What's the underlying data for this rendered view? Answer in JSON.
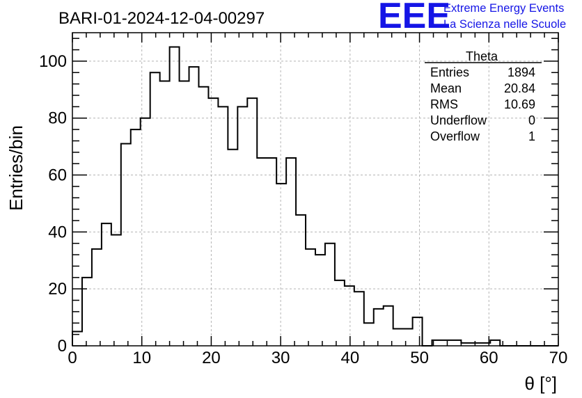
{
  "chart_data": {
    "type": "bar",
    "title": "BARI-01-2024-12-04-00297",
    "xlabel": "θ [°]",
    "ylabel": "Entries/bin",
    "xlim": [
      0,
      70
    ],
    "ylim": [
      0,
      110
    ],
    "bin_width": 1.4,
    "grid": true,
    "x_ticks": [
      0,
      10,
      20,
      30,
      40,
      50,
      60,
      70
    ],
    "y_ticks": [
      0,
      20,
      40,
      60,
      80,
      100
    ],
    "values": [
      5,
      24,
      34,
      43,
      39,
      71,
      76,
      80,
      96,
      93,
      105,
      93,
      98,
      91,
      87,
      84,
      69,
      84,
      87,
      66,
      66,
      57,
      66,
      46,
      34,
      32,
      36,
      23,
      21,
      19,
      8,
      13,
      14,
      6,
      6,
      10,
      0,
      2,
      2,
      2,
      1,
      1,
      1,
      2,
      0,
      0,
      0,
      0,
      0,
      0
    ],
    "stats_box": {
      "title": "Theta",
      "rows": [
        {
          "label": "Entries",
          "value": "1894"
        },
        {
          "label": "Mean",
          "value": "20.84"
        },
        {
          "label": "RMS",
          "value": "10.69"
        },
        {
          "label": "Underflow",
          "value": "0"
        },
        {
          "label": "Overflow",
          "value": "1"
        }
      ]
    }
  },
  "branding": {
    "logo_text": "EEE",
    "line1": "Extreme Energy Events",
    "line2": "La Scienza nelle Scuole",
    "color": "#1515e6"
  }
}
